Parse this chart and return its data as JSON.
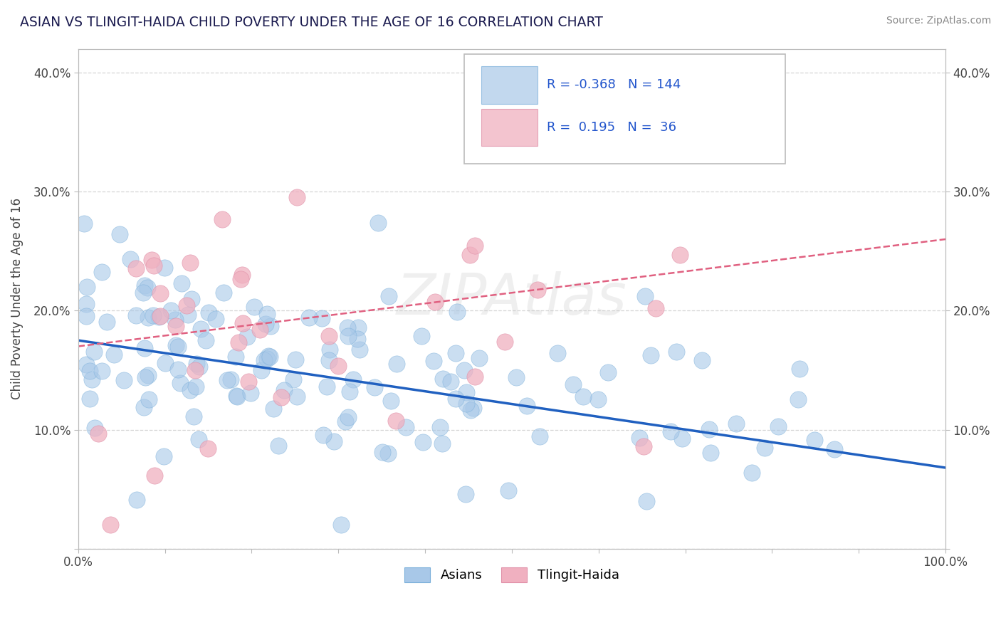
{
  "title": "ASIAN VS TLINGIT-HAIDA CHILD POVERTY UNDER THE AGE OF 16 CORRELATION CHART",
  "source": "Source: ZipAtlas.com",
  "ylabel": "Child Poverty Under the Age of 16",
  "xlim": [
    0.0,
    1.0
  ],
  "ylim": [
    0.0,
    0.42
  ],
  "xticks": [
    0.0,
    0.1,
    0.2,
    0.3,
    0.4,
    0.5,
    0.6,
    0.7,
    0.8,
    0.9,
    1.0
  ],
  "xticklabels": [
    "0.0%",
    "",
    "",
    "",
    "",
    "",
    "",
    "",
    "",
    "",
    "100.0%"
  ],
  "yticks": [
    0.0,
    0.1,
    0.2,
    0.3,
    0.4
  ],
  "yticklabels": [
    "",
    "10.0%",
    "20.0%",
    "30.0%",
    "40.0%"
  ],
  "asian_color": "#a8c8e8",
  "tlingit_color": "#f0b0c0",
  "asian_R": -0.368,
  "asian_N": 144,
  "tlingit_R": 0.195,
  "tlingit_N": 36,
  "legend_label_asian": "Asians",
  "legend_label_tlingit": "Tlingit-Haida",
  "watermark": "ZIPAtlas",
  "background_color": "#ffffff",
  "grid_color": "#cccccc",
  "title_color": "#1a1a4e",
  "asian_trend_y_start": 0.175,
  "asian_trend_y_end": 0.068,
  "tlingit_trend_y_start": 0.17,
  "tlingit_trend_y_end": 0.26
}
